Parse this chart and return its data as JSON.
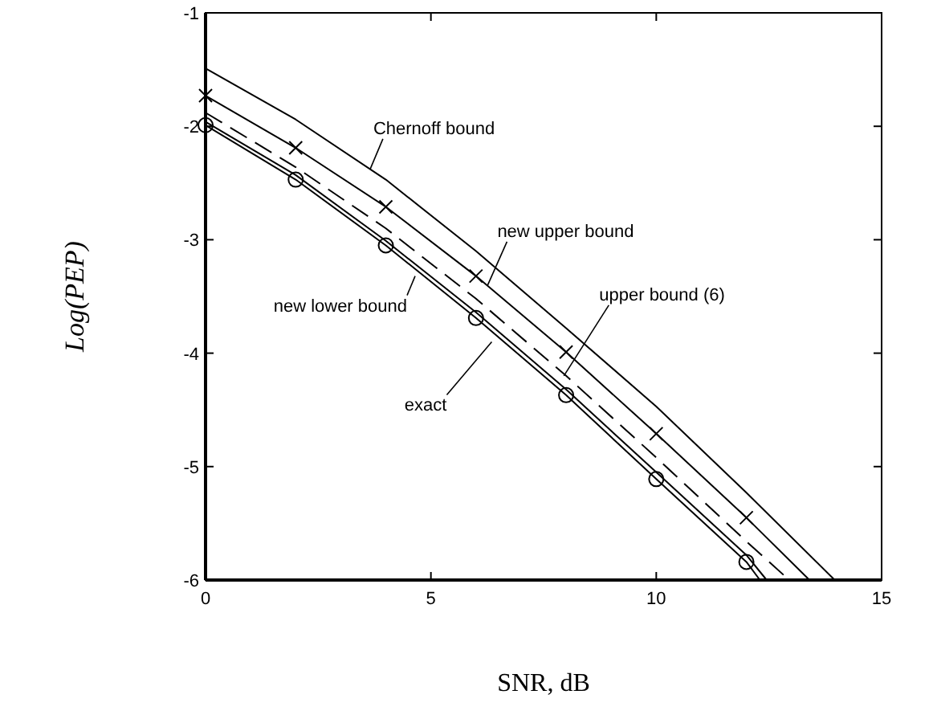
{
  "chart_data": {
    "type": "line",
    "xlabel": "SNR, dB",
    "ylabel": "Log(PEP)",
    "xlim": [
      0,
      15
    ],
    "xticks": [
      0,
      5,
      10,
      15
    ],
    "ylim": [
      -6,
      -1
    ],
    "yticks": [
      -6,
      -5,
      -4,
      -3,
      -2,
      -1
    ],
    "grid": false,
    "series": [
      {
        "color": "#000000",
        "marker": "none",
        "line_style": "solid",
        "x": [
          0,
          2,
          4,
          6,
          8,
          10,
          12,
          13.96
        ],
        "values": [
          -1.49,
          -1.94,
          -2.47,
          -3.1,
          -3.78,
          -4.47,
          -5.23,
          -6
        ]
      },
      {
        "color": "#000000",
        "marker": "cross",
        "line_style": "solid",
        "x": [
          0,
          2,
          4,
          6,
          8,
          10,
          12,
          13.4
        ],
        "values": [
          -1.73,
          -2.19,
          -2.71,
          -3.32,
          -3.99,
          -4.71,
          -5.45,
          -6
        ]
      },
      {
        "color": "#000000",
        "marker": "none",
        "line_style": "dashed",
        "x": [
          0,
          2,
          4,
          6,
          8,
          10,
          12,
          12.95
        ],
        "values": [
          -1.88,
          -2.36,
          -2.9,
          -3.52,
          -4.2,
          -4.92,
          -5.66,
          -6
        ]
      },
      {
        "color": "#000000",
        "marker": "none",
        "line_style": "solid",
        "x": [
          0,
          2,
          4,
          6,
          8,
          10,
          12,
          12.45
        ],
        "values": [
          -1.96,
          -2.43,
          -3.01,
          -3.64,
          -4.32,
          -5.05,
          -5.78,
          -6
        ]
      },
      {
        "color": "#000000",
        "marker": "circle",
        "line_style": "solid",
        "x": [
          0,
          2,
          4,
          6,
          8,
          10,
          12,
          12.3
        ],
        "values": [
          -1.99,
          -2.47,
          -3.05,
          -3.69,
          -4.37,
          -5.11,
          -5.84,
          -6
        ]
      }
    ],
    "annotations": [
      {
        "text": "Chernoff bound",
        "x": 3.65,
        "y": -2.38
      },
      {
        "text": "new upper bound",
        "x": 6.26,
        "y": -3.4
      },
      {
        "text": "upper bound (6)",
        "x": 7.95,
        "y": -4.2
      },
      {
        "text": "new lower bound",
        "x": 4.65,
        "y": -3.32
      },
      {
        "text": "exact",
        "x": 6.35,
        "y": -3.9
      }
    ]
  }
}
